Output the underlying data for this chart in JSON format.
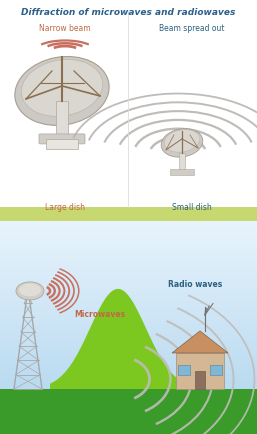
{
  "title": "Diffraction of microwaves and radiowaves",
  "title_color": "#2c5f8a",
  "title_fontsize": 6.5,
  "background_color": "#ffffff",
  "label_narrow": "Narrow beam",
  "label_spread": "Beam spread out",
  "label_large": "Large dish",
  "label_small": "Small dish",
  "label_micro": "Microwaves",
  "label_radio": "Radio waves",
  "label_color_orange": "#c06848",
  "label_color_blue": "#2c6080",
  "grass_color_top": "#c8d870",
  "dish_color": "#c8c4be",
  "dish_inner_color": "#dedad4",
  "dish_strut_color": "#8b7050",
  "wave_color_narrow": "#c87060",
  "wave_color_spread": "#b8b4b0",
  "wave_color_micro": "#c87060",
  "wave_color_radio": "#c0bcb8",
  "sky_top": "#e8f4fc",
  "sky_bottom": "#c0ddf0",
  "hill_color": "#7dc820",
  "ground_color": "#3a9a2a",
  "tower_color": "#a8a8a8",
  "house_wall": "#d4b896",
  "house_roof": "#c89060",
  "house_window": "#7eb8d4"
}
